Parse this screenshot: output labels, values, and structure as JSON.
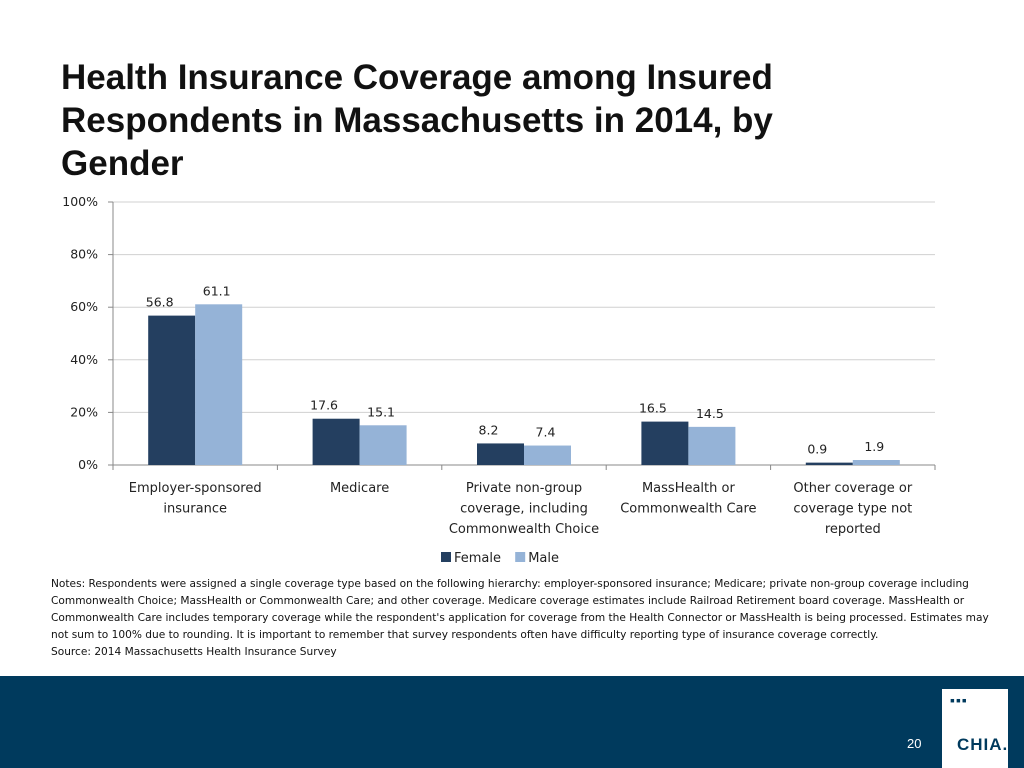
{
  "slide": {
    "title": "Health Insurance Coverage among Insured Respondents in Massachusetts in 2014, by Gender",
    "notes": "Notes: Respondents were assigned a single coverage type based on the following hierarchy: employer-sponsored insurance; Medicare; private non-group coverage including Commonwealth Choice; MassHealth or Commonwealth Care; and other coverage. Medicare coverage estimates include Railroad Retirement board coverage. MassHealth or Commonwealth Care includes temporary coverage while the respondent's application for coverage from the Health Connector or MassHealth is being processed. Estimates may not sum to 100% due to rounding. It is important to remember that survey respondents often have difficulty reporting type of insurance coverage correctly.",
    "source": "Source:  2014 Massachusetts Health Insurance Survey",
    "page_number": "20",
    "logo_text": "CHIA."
  },
  "colors": {
    "female": "#243f60",
    "male": "#95b3d7",
    "footer": "#003a5d"
  },
  "chart_data": {
    "type": "bar",
    "title": "Health Insurance Coverage among Insured Respondents in Massachusetts in 2014, by Gender",
    "categories": [
      [
        "Employer-sponsored",
        "insurance"
      ],
      [
        "Medicare"
      ],
      [
        "Private non-group",
        "coverage, including",
        "Commonwealth Choice"
      ],
      [
        "MassHealth or",
        "Commonwealth Care"
      ],
      [
        "Other coverage or",
        "coverage type not",
        "reported"
      ]
    ],
    "series": [
      {
        "name": "Female",
        "values": [
          56.8,
          17.6,
          8.2,
          16.5,
          0.9
        ]
      },
      {
        "name": "Male",
        "values": [
          61.1,
          15.1,
          7.4,
          14.5,
          1.9
        ]
      }
    ],
    "ylim": [
      0,
      100
    ],
    "yticks": [
      0,
      20,
      40,
      60,
      80,
      100
    ],
    "ytick_labels": [
      "0%",
      "20%",
      "40%",
      "60%",
      "80%",
      "100%"
    ],
    "grid": true,
    "legend": "bottom",
    "xlabel": "",
    "ylabel": ""
  }
}
